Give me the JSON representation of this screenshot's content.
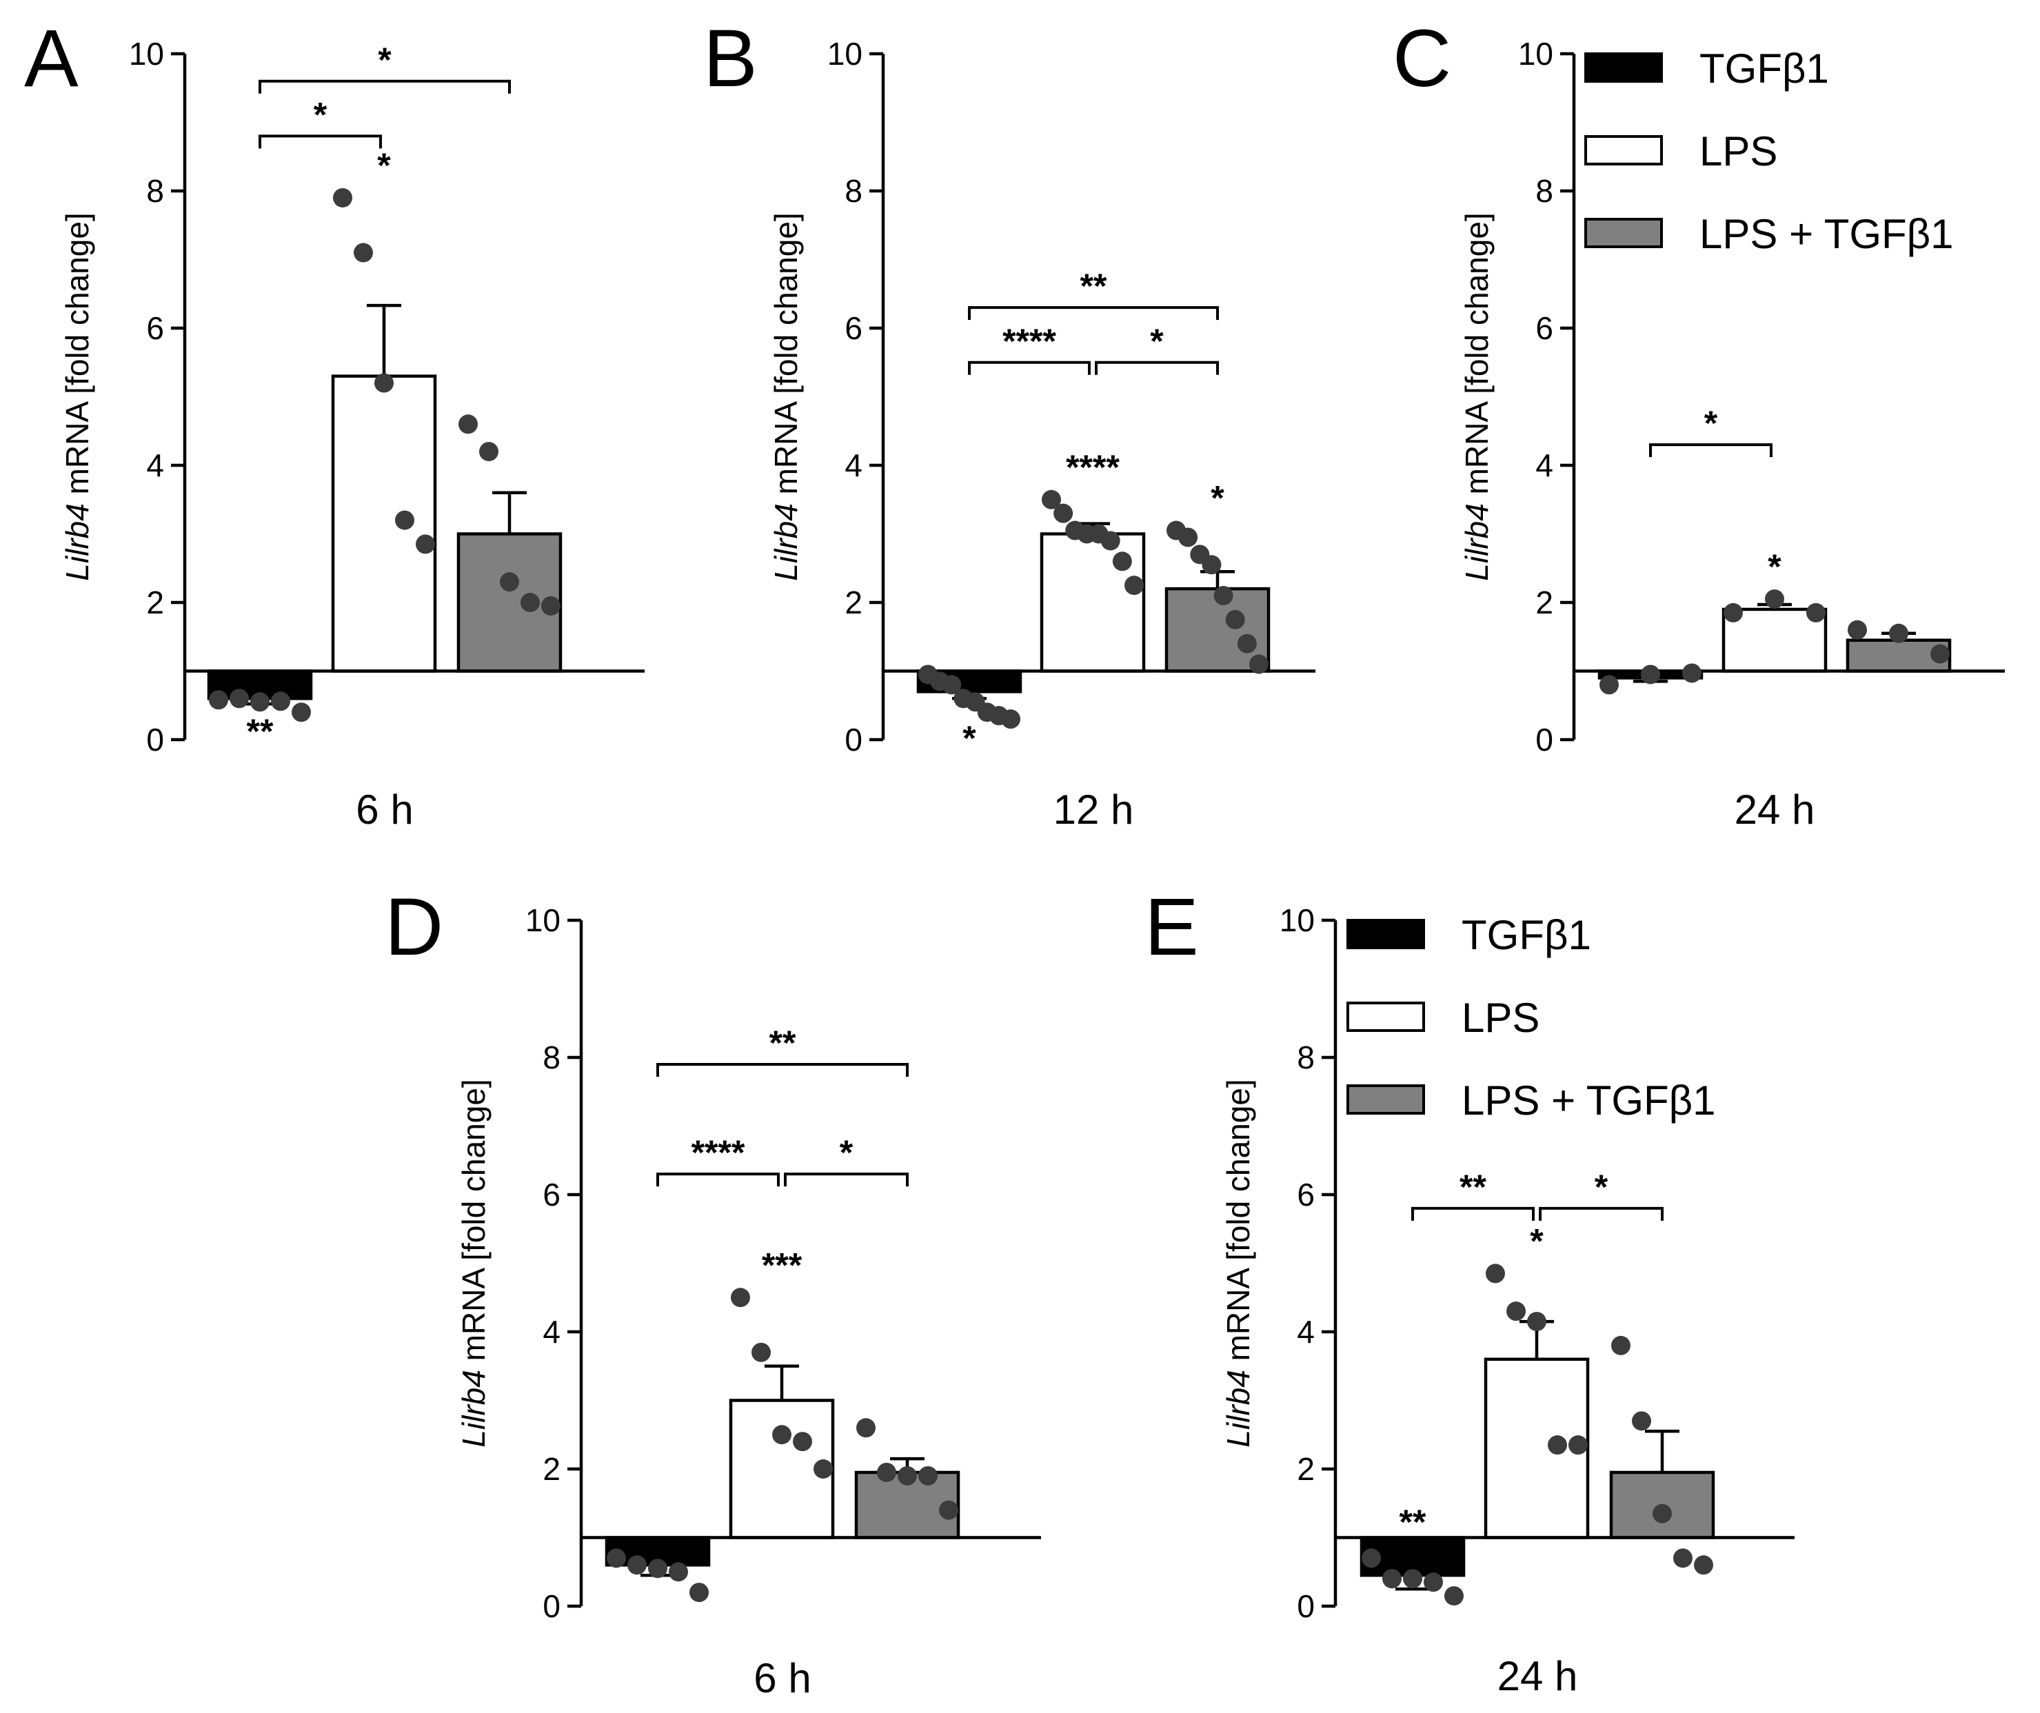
{
  "figure": {
    "legend_entries": [
      {
        "label": "TGFβ1",
        "color": "#000000"
      },
      {
        "label": "LPS",
        "color": "#ffffff"
      },
      {
        "label": "LPS + TGFβ1",
        "color": "#808080"
      }
    ],
    "ylabel_gene": "Lilrb4",
    "ylabel_rest": " mRNA [fold change]"
  },
  "chart_data": [
    {
      "panel": "A",
      "type": "bar",
      "title": "",
      "xlabel": "6 h",
      "ylabel": "Lilrb4 mRNA [fold change]",
      "ylim": [
        0,
        10
      ],
      "yticks": [
        "0",
        "2",
        "4",
        "6",
        "8",
        "10"
      ],
      "reference_line": 1,
      "legend": false,
      "categories": [
        "TGFβ1",
        "LPS",
        "LPS + TGFβ1"
      ],
      "values": [
        0.6,
        5.3,
        3.0
      ],
      "sem": [
        0.08,
        1.03,
        0.6
      ],
      "points": [
        [
          0.58,
          0.6,
          0.55,
          0.56,
          0.4
        ],
        [
          7.9,
          7.1,
          5.2,
          3.2,
          2.85
        ],
        [
          4.6,
          4.2,
          2.3,
          2.0,
          1.95
        ]
      ],
      "bar_stars": [
        "**",
        "*",
        ""
      ],
      "brackets": [
        {
          "from": 0,
          "to": 1,
          "label": "*",
          "y": 8.8
        },
        {
          "from": 0,
          "to": 2,
          "label": "*",
          "y": 9.6
        }
      ]
    },
    {
      "panel": "B",
      "type": "bar",
      "title": "",
      "xlabel": "12 h",
      "ylabel": "Lilrb4 mRNA [fold change]",
      "ylim": [
        0,
        10
      ],
      "yticks": [
        "0",
        "2",
        "4",
        "6",
        "8",
        "10"
      ],
      "reference_line": 1,
      "legend": false,
      "categories": [
        "TGFβ1",
        "LPS",
        "LPS + TGFβ1"
      ],
      "values": [
        0.7,
        3.0,
        2.2
      ],
      "sem": [
        0.1,
        0.15,
        0.25
      ],
      "points": [
        [
          0.95,
          0.85,
          0.8,
          0.6,
          0.55,
          0.4,
          0.35,
          0.3
        ],
        [
          3.5,
          3.3,
          3.05,
          3.0,
          3.0,
          2.9,
          2.6,
          2.25
        ],
        [
          3.05,
          2.95,
          2.7,
          2.55,
          2.1,
          1.75,
          1.4,
          1.1
        ]
      ],
      "bar_stars": [
        "*",
        "****",
        "*"
      ],
      "brackets": [
        {
          "from": 0,
          "to": 1,
          "label": "****",
          "y": 5.5
        },
        {
          "from": 1,
          "to": 2,
          "label": "*",
          "y": 5.5
        },
        {
          "from": 0,
          "to": 2,
          "label": "**",
          "y": 6.3
        }
      ]
    },
    {
      "panel": "C",
      "type": "bar",
      "title": "",
      "xlabel": "24 h",
      "ylabel": "Lilrb4 mRNA [fold change]",
      "ylim": [
        0,
        10
      ],
      "yticks": [
        "0",
        "2",
        "4",
        "6",
        "8",
        "10"
      ],
      "reference_line": 1,
      "legend": true,
      "categories": [
        "TGFβ1",
        "LPS",
        "LPS + TGFβ1"
      ],
      "values": [
        0.9,
        1.9,
        1.45
      ],
      "sem": [
        0.05,
        0.07,
        0.1
      ],
      "points": [
        [
          0.8,
          0.95,
          0.97
        ],
        [
          1.85,
          2.05,
          1.85
        ],
        [
          1.6,
          1.55,
          1.25
        ]
      ],
      "bar_stars": [
        "",
        "*",
        ""
      ],
      "brackets": [
        {
          "from": 0,
          "to": 1,
          "label": "*",
          "y": 4.3
        }
      ]
    },
    {
      "panel": "D",
      "type": "bar",
      "title": "",
      "xlabel": "6 h",
      "ylabel": "Lilrb4 mRNA [fold change]",
      "ylim": [
        0,
        10
      ],
      "yticks": [
        "0",
        "2",
        "4",
        "6",
        "8",
        "10"
      ],
      "reference_line": 1,
      "legend": false,
      "categories": [
        "TGFβ1",
        "LPS",
        "LPS + TGFβ1"
      ],
      "values": [
        0.6,
        3.0,
        1.95
      ],
      "sem": [
        0.15,
        0.5,
        0.2
      ],
      "points": [
        [
          0.7,
          0.6,
          0.55,
          0.5,
          0.2
        ],
        [
          4.5,
          3.7,
          2.5,
          2.4,
          2.0
        ],
        [
          2.6,
          1.95,
          1.9,
          1.9,
          1.4
        ]
      ],
      "bar_stars": [
        "",
        "***",
        ""
      ],
      "brackets": [
        {
          "from": 0,
          "to": 1,
          "label": "****",
          "y": 6.3
        },
        {
          "from": 1,
          "to": 2,
          "label": "*",
          "y": 6.3
        },
        {
          "from": 0,
          "to": 2,
          "label": "**",
          "y": 7.9
        }
      ]
    },
    {
      "panel": "E",
      "type": "bar",
      "title": "",
      "xlabel": "24 h",
      "ylabel": "Lilrb4 mRNA [fold change]",
      "ylim": [
        0,
        10
      ],
      "yticks": [
        "0",
        "2",
        "4",
        "6",
        "8",
        "10"
      ],
      "reference_line": 1,
      "legend": true,
      "categories": [
        "TGFβ1",
        "LPS",
        "LPS + TGFβ1"
      ],
      "values": [
        0.45,
        3.6,
        1.95
      ],
      "sem": [
        0.2,
        0.55,
        0.6
      ],
      "points": [
        [
          0.7,
          0.4,
          0.4,
          0.35,
          0.15
        ],
        [
          4.85,
          4.3,
          4.15,
          2.35,
          2.35
        ],
        [
          3.8,
          2.7,
          1.35,
          0.7,
          0.6
        ]
      ],
      "bar_stars": [
        "**",
        "*",
        ""
      ],
      "brackets": [
        {
          "from": 0,
          "to": 1,
          "label": "**",
          "y": 5.8
        },
        {
          "from": 1,
          "to": 2,
          "label": "*",
          "y": 5.8
        }
      ]
    }
  ]
}
